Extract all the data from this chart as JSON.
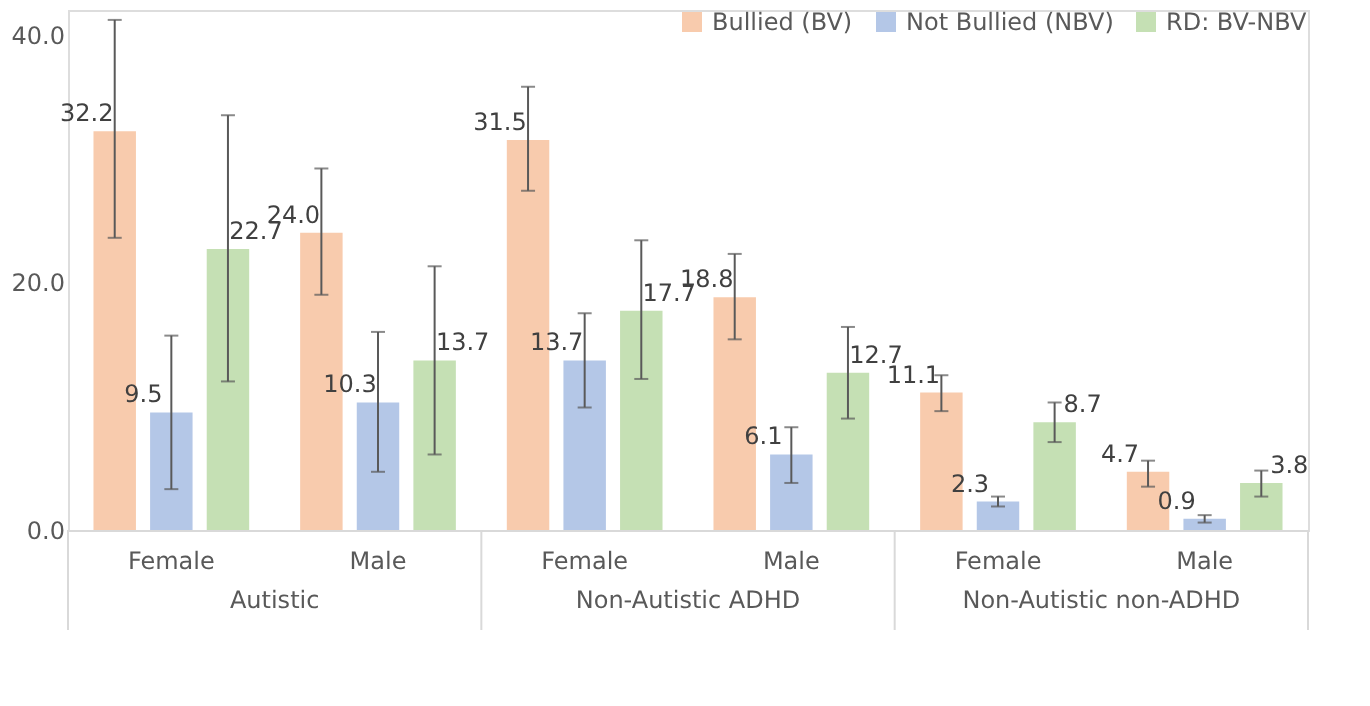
{
  "chart_data": {
    "type": "bar",
    "categories": [
      "Female",
      "Male",
      "Female",
      "Male",
      "Female",
      "Male"
    ],
    "annotations": [
      "Autistic",
      "Non-Autistic ADHD",
      "Non-Autistic non-ADHD"
    ],
    "series": [
      {
        "name": "Bullied (BV)",
        "color": "#f8cbad",
        "values": [
          32.2,
          24.0,
          31.5,
          18.8,
          11.1,
          4.7
        ],
        "value_labels": [
          "32.2",
          "24.0",
          "31.5",
          "18.8",
          "11.1",
          "4.7"
        ],
        "errors": [
          [
            23.6,
            41.2
          ],
          [
            19.0,
            29.2
          ],
          [
            27.4,
            35.8
          ],
          [
            15.4,
            22.3
          ],
          [
            9.6,
            12.5
          ],
          [
            3.5,
            5.6
          ]
        ]
      },
      {
        "name": "Not Bullied (NBV)",
        "color": "#b4c7e7",
        "values": [
          9.5,
          10.3,
          13.7,
          6.1,
          2.3,
          0.9
        ],
        "value_labels": [
          "9.5",
          "10.3",
          "13.7",
          "6.1",
          "2.3",
          "0.9"
        ],
        "errors": [
          [
            3.3,
            15.7
          ],
          [
            4.7,
            16.0
          ],
          [
            9.9,
            17.5
          ],
          [
            3.8,
            8.3
          ],
          [
            1.9,
            2.7
          ],
          [
            0.6,
            1.2
          ]
        ]
      },
      {
        "name": "RD: BV-NBV",
        "color": "#c5e0b4",
        "values": [
          22.7,
          13.7,
          17.7,
          12.7,
          8.7,
          3.8
        ],
        "value_labels": [
          "22.7",
          "13.7",
          "17.7",
          "12.7",
          "8.7",
          "3.8"
        ],
        "errors": [
          [
            12.0,
            33.5
          ],
          [
            6.1,
            21.3
          ],
          [
            12.2,
            23.4
          ],
          [
            9.0,
            16.4
          ],
          [
            7.1,
            10.3
          ],
          [
            2.7,
            4.8
          ]
        ]
      }
    ],
    "ylim": [
      0,
      42
    ],
    "yticks": [
      {
        "value": 0,
        "label": "0.0"
      },
      {
        "value": 20,
        "label": "20.0"
      },
      {
        "value": 40,
        "label": "40.0"
      }
    ],
    "grid": false,
    "legend": "top right"
  }
}
